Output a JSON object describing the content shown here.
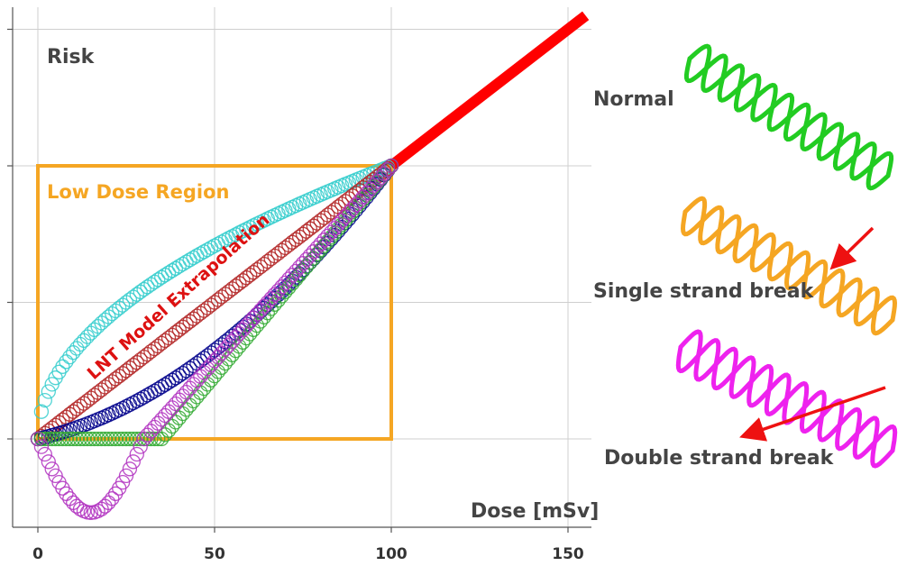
{
  "chart_data": {
    "type": "scatter",
    "title": "",
    "xlabel": "Dose [mSv]",
    "ylabel": "Risk",
    "xlim": [
      0,
      155
    ],
    "ylim": [
      -0.27,
      1.4
    ],
    "x_ticks": [
      0,
      50,
      100,
      150
    ],
    "y_ticks": [
      0,
      0.5,
      1.0
    ],
    "grid": true,
    "low_dose_region": {
      "label": "Low Dose Region",
      "x": [
        0,
        100
      ],
      "y": [
        0,
        1
      ]
    },
    "annotation": "LNT Model Extrapolation",
    "lnt_line": {
      "x": [
        100,
        155
      ],
      "y": [
        1.0,
        1.55
      ],
      "color": "#ff0000"
    },
    "series": [
      {
        "model": "supralinear",
        "color": "#33cccc",
        "x_range": [
          0,
          100
        ],
        "points": 100
      },
      {
        "model": "linear",
        "color": "#b22222",
        "x_range": [
          0,
          100
        ],
        "points": 100
      },
      {
        "model": "linear-quadratic",
        "color": "#00008b",
        "x_range": [
          0,
          100
        ],
        "points": 100
      },
      {
        "model": "threshold",
        "color": "#33aa33",
        "x_range": [
          0,
          100
        ],
        "points": 100
      },
      {
        "model": "hormesis",
        "color": "#b030c0",
        "x_range": [
          0,
          100
        ],
        "points": 100
      }
    ]
  },
  "dna": {
    "normal": {
      "label": "Normal",
      "color": "#22cc22"
    },
    "single": {
      "label": "Single strand break",
      "color": "#f5a623"
    },
    "double": {
      "label": "Double strand break",
      "color": "#ee22ee"
    },
    "arrow_color": "#ee1111"
  }
}
